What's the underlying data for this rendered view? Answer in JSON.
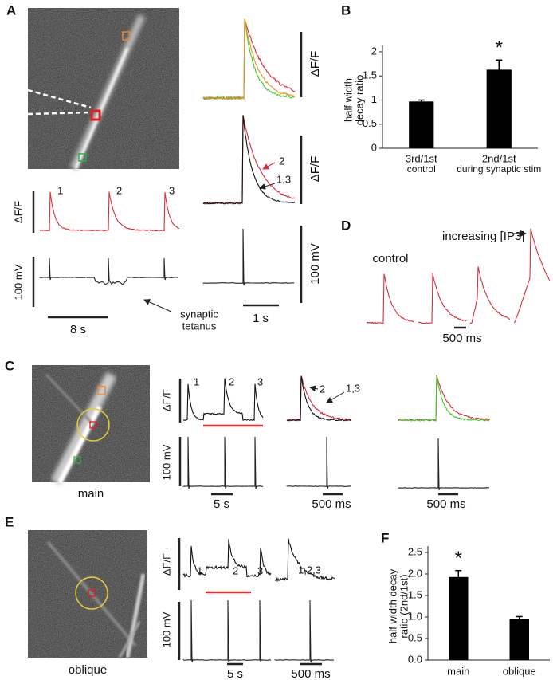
{
  "chart_data": [
    {
      "type": "bar",
      "label": "B",
      "ylabel": [
        "half width",
        "decay ratio"
      ],
      "categories": [
        "3rd/1st",
        "2nd/1st"
      ],
      "category_subtitles": [
        "control",
        "during synaptic stim"
      ],
      "values": [
        0.97,
        1.63
      ],
      "errors": [
        0.03,
        0.2
      ],
      "value_annotations": [
        null,
        "*"
      ],
      "color": "#000000",
      "ylim": [
        0,
        2
      ],
      "yticks": [
        0,
        0.5,
        1,
        1.5,
        2
      ]
    },
    {
      "type": "bar",
      "label": "F",
      "ylabel": [
        "half width decay",
        "ratio (2nd/1st)"
      ],
      "categories": [
        "main",
        "oblique"
      ],
      "values": [
        1.93,
        0.95
      ],
      "errors": [
        0.15,
        0.06
      ],
      "value_annotations": [
        "*",
        null
      ],
      "color": "#000000",
      "ylim": [
        0,
        2.5
      ],
      "yticks": [
        {
          "value": 0,
          "label": "0.0"
        },
        {
          "value": 0.5,
          "label": "0.5"
        },
        {
          "value": 1,
          "label": "1.0"
        },
        {
          "value": 1.5,
          "label": "1.5"
        },
        {
          "value": 2,
          "label": "2.0"
        },
        {
          "value": 2.5,
          "label": "2.5"
        }
      ]
    }
  ],
  "panels": {
    "A": {
      "label": "A",
      "trace_numbers": [
        "1",
        "2",
        "3"
      ],
      "dff_label": "ΔF/F",
      "mv_label": "100 mV",
      "time_label": "8 s",
      "annotation": [
        "synaptic",
        "tetanus"
      ],
      "overlay_dff_label": "ΔF/F",
      "compare_dff_label": "ΔF/F",
      "compare_labels": [
        "2",
        "1,3"
      ],
      "right_mv_label": "100 mV",
      "right_time_label": "1 s"
    },
    "C": {
      "label": "C",
      "image_caption": "main",
      "trace_numbers": [
        "1",
        "2",
        "3"
      ],
      "dff_label": "ΔF/F",
      "mv_label": "100 mV",
      "time_labels": [
        "5 s",
        "500 ms",
        "500 ms"
      ],
      "compare_labels": [
        "2",
        "1,3"
      ]
    },
    "D": {
      "label": "D",
      "control_label": "control",
      "ip3_label": "increasing [IP3]",
      "time_label": "500 ms"
    },
    "E": {
      "label": "E",
      "image_caption": "oblique",
      "trace_numbers": [
        "1",
        "2",
        "3"
      ],
      "dff_label": "ΔF/F",
      "mv_label": "100 mV",
      "time_labels": [
        "5 s",
        "500 ms"
      ],
      "compare_label": "1,2,3"
    }
  }
}
